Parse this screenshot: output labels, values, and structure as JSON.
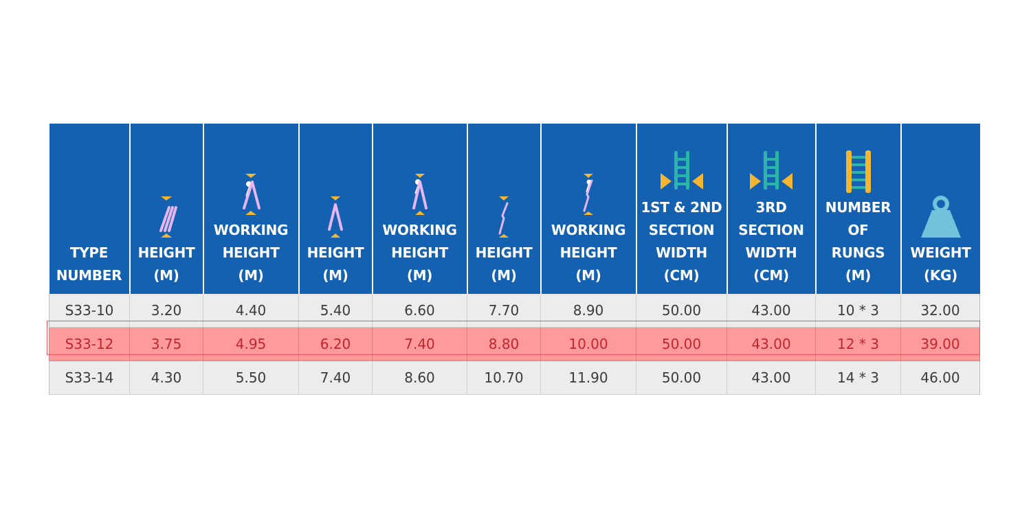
{
  "table": {
    "headers": [
      {
        "lines": [
          "TYPE",
          "NUMBER"
        ],
        "icon": ""
      },
      {
        "lines": [
          "HEIGHT",
          "(M)"
        ],
        "icon": "folded-ladder-icon"
      },
      {
        "lines": [
          "WORKING",
          "HEIGHT",
          "(M)"
        ],
        "icon": "folded-ladder-person-icon"
      },
      {
        "lines": [
          "HEIGHT",
          "(M)"
        ],
        "icon": "a-frame-ladder-icon"
      },
      {
        "lines": [
          "WORKING",
          "HEIGHT",
          "(M)"
        ],
        "icon": "a-frame-ladder-person-icon"
      },
      {
        "lines": [
          "HEIGHT",
          "(M)"
        ],
        "icon": "extension-ladder-icon"
      },
      {
        "lines": [
          "WORKING",
          "HEIGHT",
          "(M)"
        ],
        "icon": "extension-ladder-person-icon"
      },
      {
        "lines": [
          "1ST & 2ND",
          "SECTION",
          "WIDTH",
          "(CM)"
        ],
        "icon": "ladder-width-icon"
      },
      {
        "lines": [
          "3RD",
          "SECTION",
          "WIDTH",
          "(CM)"
        ],
        "icon": "ladder-width-icon"
      },
      {
        "lines": [
          "NUMBER",
          "OF",
          "RUNGS",
          "(M)"
        ],
        "icon": "ladder-rungs-icon"
      },
      {
        "lines": [
          "WEIGHT",
          "(KG)"
        ],
        "icon": "weight-icon"
      }
    ],
    "rows": [
      [
        "S33-10",
        "3.20",
        "4.40",
        "5.40",
        "6.60",
        "7.70",
        "8.90",
        "50.00",
        "43.00",
        "10 * 3",
        "32.00"
      ],
      [
        "S33-12",
        "3.75",
        "4.95",
        "6.20",
        "7.40",
        "8.80",
        "10.00",
        "50.00",
        "43.00",
        "12 * 3",
        "39.00"
      ],
      [
        "S33-14",
        "4.30",
        "5.50",
        "7.40",
        "8.60",
        "10.70",
        "11.90",
        "50.00",
        "43.00",
        "14 * 3",
        "46.00"
      ]
    ],
    "highlighted_row": 1
  },
  "colors": {
    "header_bg": "#1361b0",
    "header_text": "#ffffff",
    "row_bg": "#ececec",
    "highlight_bg": "#ff9a9c",
    "highlight_text": "#c0262c",
    "icon_pink": "#e8b6ee",
    "icon_teal": "#2bb5a8",
    "icon_yellow": "#f5b731",
    "icon_lightblue": "#72c2dc"
  }
}
